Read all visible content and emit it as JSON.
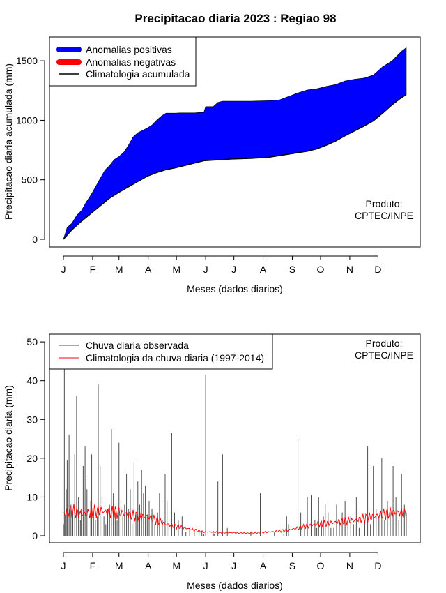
{
  "title": "Precipitacao diaria 2023 : Regiao 98",
  "colors": {
    "positive": "#0000ff",
    "negative": "#ff0000",
    "observed": "#4d4d4d",
    "climatology_daily": "#ff0000",
    "line": "#000000"
  },
  "chart_data": [
    {
      "type": "area",
      "name": "accumulated",
      "ylabel": "Precipitacao diaria acumulada (mm)",
      "xlabel": "Meses (dados diarios)",
      "x_ticks": [
        "J",
        "F",
        "M",
        "A",
        "M",
        "J",
        "J",
        "A",
        "S",
        "O",
        "N",
        "D"
      ],
      "x_tick_days": [
        1,
        32,
        60,
        91,
        121,
        152,
        182,
        213,
        244,
        274,
        305,
        335
      ],
      "xlim": [
        1,
        365
      ],
      "ylim": [
        0,
        1700
      ],
      "y_ticks": [
        0,
        500,
        1000,
        1500
      ],
      "legend": [
        "Anomalias positivas",
        "Anomalias negativas",
        "Climatologia acumulada"
      ],
      "legend_position": "top-left",
      "annotation": [
        "Produto:",
        "CPTEC/INPE"
      ],
      "annotation_position": "bottom-right",
      "series": [
        {
          "name": "Precipitacao observada acumulada",
          "x": [
            1,
            5,
            10,
            15,
            20,
            25,
            30,
            35,
            40,
            45,
            50,
            55,
            60,
            65,
            70,
            75,
            80,
            85,
            90,
            95,
            100,
            105,
            110,
            115,
            120,
            125,
            130,
            135,
            140,
            145,
            150,
            152,
            155,
            160,
            165,
            170,
            180,
            200,
            220,
            230,
            240,
            250,
            260,
            270,
            280,
            290,
            300,
            310,
            320,
            330,
            340,
            350,
            360,
            365
          ],
          "values": [
            0,
            100,
            135,
            200,
            240,
            310,
            370,
            440,
            510,
            580,
            620,
            670,
            695,
            730,
            790,
            860,
            895,
            915,
            935,
            960,
            1000,
            1035,
            1060,
            1060,
            1060,
            1062,
            1062,
            1062,
            1062,
            1065,
            1065,
            1115,
            1115,
            1115,
            1150,
            1160,
            1160,
            1160,
            1165,
            1170,
            1200,
            1230,
            1255,
            1265,
            1285,
            1300,
            1330,
            1345,
            1355,
            1380,
            1450,
            1500,
            1580,
            1610
          ]
        },
        {
          "name": "Climatologia acumulada",
          "x": [
            1,
            10,
            20,
            30,
            40,
            50,
            60,
            70,
            80,
            90,
            100,
            110,
            120,
            130,
            140,
            150,
            160,
            170,
            180,
            200,
            220,
            240,
            260,
            270,
            280,
            290,
            300,
            310,
            320,
            330,
            340,
            350,
            360,
            365
          ],
          "values": [
            0,
            80,
            150,
            215,
            280,
            345,
            395,
            440,
            485,
            530,
            560,
            585,
            600,
            620,
            640,
            660,
            665,
            670,
            675,
            680,
            690,
            715,
            740,
            760,
            790,
            825,
            870,
            910,
            950,
            995,
            1060,
            1130,
            1190,
            1215
          ]
        }
      ]
    },
    {
      "type": "bar",
      "name": "daily",
      "ylabel": "Precipitacao diaria (mm)",
      "xlabel": "Meses (dados diarios)",
      "x_ticks": [
        "J",
        "F",
        "M",
        "A",
        "M",
        "J",
        "J",
        "A",
        "S",
        "O",
        "N",
        "D"
      ],
      "x_tick_days": [
        1,
        32,
        60,
        91,
        121,
        152,
        182,
        213,
        244,
        274,
        305,
        335
      ],
      "xlim": [
        1,
        365
      ],
      "ylim": [
        0,
        52
      ],
      "y_ticks": [
        0,
        10,
        20,
        30,
        40,
        50
      ],
      "legend": [
        "Chuva diaria observada",
        "Climatologia da chuva diaria (1997-2014)"
      ],
      "legend_position": "top-left",
      "annotation": [
        "Produto:",
        "CPTEC/INPE"
      ],
      "annotation_position": "top-right",
      "series": [
        {
          "name": "Chuva diaria observada",
          "x": [
            1,
            2,
            3,
            4,
            5,
            7,
            9,
            11,
            13,
            15,
            17,
            19,
            20,
            22,
            24,
            26,
            28,
            30,
            31,
            33,
            35,
            37,
            38,
            40,
            42,
            44,
            46,
            48,
            50,
            52,
            54,
            56,
            58,
            60,
            62,
            64,
            66,
            68,
            70,
            72,
            74,
            76,
            78,
            80,
            82,
            84,
            86,
            88,
            90,
            92,
            95,
            98,
            101,
            103,
            106,
            109,
            111,
            113,
            116,
            119,
            123,
            127,
            131,
            135,
            140,
            145,
            148,
            150,
            152,
            156,
            160,
            161,
            165,
            170,
            175,
            180,
            190,
            200,
            210,
            215,
            220,
            225,
            230,
            233,
            235,
            238,
            240,
            243,
            246,
            250,
            253,
            257,
            260,
            264,
            268,
            270,
            272,
            275,
            277,
            279,
            282,
            285,
            288,
            291,
            294,
            297,
            300,
            303,
            306,
            309,
            312,
            315,
            318,
            321,
            324,
            327,
            330,
            333,
            336,
            339,
            342,
            345,
            348,
            351,
            354,
            357,
            360,
            363,
            365
          ],
          "values": [
            3,
            45,
            5,
            12,
            19.5,
            26,
            8,
            6,
            21,
            36,
            10,
            4,
            7,
            18,
            23,
            12,
            15,
            9,
            21,
            6,
            4,
            5,
            39,
            18,
            10,
            5,
            3,
            7,
            8,
            27.5,
            11,
            6,
            4,
            24,
            9,
            5,
            8,
            16,
            7,
            12,
            3,
            19,
            6,
            14,
            8,
            17,
            11,
            13,
            5,
            9,
            7,
            3,
            6,
            11,
            4,
            16,
            9,
            3,
            26.5,
            6,
            4,
            5,
            1,
            2,
            1,
            1,
            1,
            0.5,
            41.5,
            0,
            1,
            0.5,
            14,
            21,
            2,
            0,
            0,
            1,
            11,
            0,
            0,
            1,
            0,
            1,
            0.5,
            5,
            3,
            0,
            0,
            25,
            6,
            2,
            10,
            10.5,
            4,
            2,
            10,
            3,
            5,
            8,
            6,
            2,
            2,
            8,
            4,
            6,
            9,
            3,
            5,
            3,
            10,
            2,
            6,
            4,
            23,
            3,
            18,
            7,
            5,
            20,
            4,
            9,
            6,
            18,
            10,
            4,
            16,
            8,
            6
          ]
        },
        {
          "name": "Climatologia da chuva diaria (1997-2014)",
          "x": [
            1,
            10,
            20,
            30,
            40,
            50,
            60,
            70,
            80,
            90,
            100,
            110,
            120,
            130,
            140,
            150,
            160,
            170,
            180,
            190,
            200,
            210,
            220,
            230,
            240,
            250,
            260,
            270,
            280,
            290,
            300,
            310,
            320,
            330,
            340,
            350,
            360,
            365
          ],
          "values": [
            5.5,
            6.5,
            5.5,
            6,
            6.5,
            6,
            6,
            5.5,
            5,
            5,
            4,
            3,
            2.5,
            2,
            1.5,
            1,
            1,
            0.8,
            0.8,
            0.7,
            0.7,
            0.8,
            1,
            1.2,
            1.5,
            2,
            2.5,
            3,
            3.2,
            3.5,
            3.8,
            4,
            4.5,
            5,
            5.5,
            6,
            6,
            5.5
          ]
        }
      ]
    }
  ]
}
